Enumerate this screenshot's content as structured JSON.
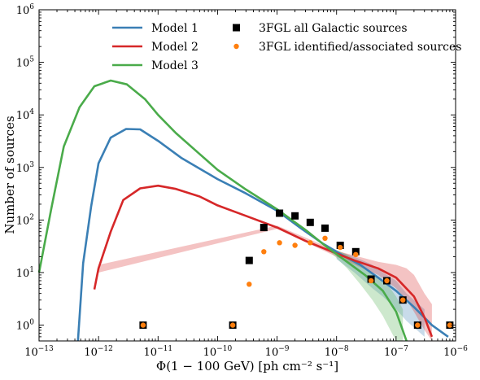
{
  "chart_data": {
    "type": "line",
    "xlabel": "Φ(1 − 100 GeV) [ph cm⁻² s⁻¹]",
    "ylabel": "Number of sources",
    "x_scale": "log",
    "y_scale": "log",
    "xlim": [
      1e-13,
      1e-06
    ],
    "ylim": [
      0.5,
      1000000
    ],
    "x_ticks": [
      {
        "value": 1e-13,
        "base": "10",
        "exp": "−13"
      },
      {
        "value": 1e-12,
        "base": "10",
        "exp": "−12"
      },
      {
        "value": 1e-11,
        "base": "10",
        "exp": "−11"
      },
      {
        "value": 1e-10,
        "base": "10",
        "exp": "−10"
      },
      {
        "value": 1e-09,
        "base": "10",
        "exp": "−9"
      },
      {
        "value": 1e-08,
        "base": "10",
        "exp": "−8"
      },
      {
        "value": 1e-07,
        "base": "10",
        "exp": "−7"
      },
      {
        "value": 1e-06,
        "base": "10",
        "exp": "−6"
      }
    ],
    "y_ticks": [
      {
        "value": 1,
        "base": "10",
        "exp": "0"
      },
      {
        "value": 10,
        "base": "10",
        "exp": "1"
      },
      {
        "value": 100,
        "base": "10",
        "exp": "2"
      },
      {
        "value": 1000,
        "base": "10",
        "exp": "3"
      },
      {
        "value": 10000,
        "base": "10",
        "exp": "4"
      },
      {
        "value": 100000,
        "base": "10",
        "exp": "5"
      },
      {
        "value": 1000000,
        "base": "10",
        "exp": "6"
      }
    ],
    "legend_position": "top",
    "series": [
      {
        "name": "Model 1",
        "kind": "line",
        "color": "#3a7fb5",
        "x": [
          4.5e-13,
          5.5e-13,
          7.5e-13,
          1e-12,
          1.6e-12,
          2.9e-12,
          5e-12,
          1e-11,
          2.5e-11,
          1e-10,
          3e-10,
          1e-09,
          2.5e-09,
          6e-09,
          1.2e-08,
          2.5e-08,
          5e-08,
          1e-07,
          2e-07,
          4e-07,
          7.5e-07
        ],
        "y": [
          0.5,
          15,
          180,
          1200,
          3700,
          5400,
          5300,
          3200,
          1500,
          600,
          320,
          150,
          70,
          35,
          22,
          14,
          8,
          4.5,
          2.2,
          1,
          0.6
        ],
        "band": {
          "x": [
            1e-08,
            2e-08,
            4e-08,
            6e-08,
            1e-07,
            1.5e-07,
            2e-07,
            3e-07
          ],
          "lower": [
            18,
            10,
            5,
            3.5,
            2,
            1.2,
            0.9,
            0.6
          ],
          "upper": [
            26,
            20,
            14,
            10,
            7,
            4,
            3,
            2
          ]
        }
      },
      {
        "name": "Model 2",
        "kind": "line",
        "color": "#d62728",
        "x": [
          8.5e-13,
          1e-12,
          1.6e-12,
          2.6e-12,
          5e-12,
          1e-11,
          2e-11,
          5e-11,
          1e-10,
          3e-10,
          1e-09,
          3e-09,
          1e-08,
          2e-08,
          5e-08,
          1e-07,
          2e-07,
          3e-07,
          4e-07
        ],
        "y": [
          4.8,
          12,
          60,
          240,
          400,
          450,
          390,
          280,
          190,
          120,
          72,
          40,
          23,
          17,
          12,
          8,
          3.5,
          1.4,
          0.6
        ],
        "band": {
          "x": [
            8.5e-13,
            1e-12,
            1e-09,
            1e-08,
            5e-08,
            1e-07,
            1.5e-07,
            2e-07,
            3e-07,
            4e-07
          ],
          "lower": [
            4.5,
            10,
            68,
            20,
            9,
            5,
            3,
            1.8,
            0.8,
            0.5
          ],
          "upper": [
            5.5,
            14,
            78,
            26,
            16,
            14,
            12,
            9,
            4,
            2.5
          ]
        }
      },
      {
        "name": "Model 3",
        "kind": "line",
        "color": "#4aab4a",
        "x": [
          1e-13,
          1.6e-13,
          2.6e-13,
          4.8e-13,
          8.5e-13,
          1.6e-12,
          3e-12,
          6e-12,
          1e-11,
          2e-11,
          5e-11,
          1e-10,
          3e-10,
          1e-09,
          3e-09,
          7e-09,
          1.5e-08,
          3e-08,
          6e-08,
          1e-07,
          1.5e-07
        ],
        "y": [
          10,
          160,
          2500,
          14000,
          35000,
          45000,
          38000,
          20000,
          10000,
          4500,
          1800,
          900,
          380,
          160,
          65,
          30,
          16,
          9,
          4.5,
          1.8,
          0.5
        ],
        "band": {
          "x": [
            7e-09,
            1.5e-08,
            2.5e-08,
            4e-08,
            6e-08,
            8e-08,
            1e-07,
            1.3e-07
          ],
          "lower": [
            28,
            12,
            6,
            3,
            1.5,
            0.8,
            0.5,
            0.5
          ],
          "upper": [
            32,
            22,
            15,
            10,
            7,
            5,
            3.5,
            2
          ]
        }
      },
      {
        "name": "3FGL all Galactic sources",
        "kind": "square",
        "color": "#000000",
        "x": [
          5.6e-12,
          1.8e-10,
          3.4e-10,
          6e-10,
          1.1e-09,
          2e-09,
          3.6e-09,
          6.4e-09,
          1.15e-08,
          2.1e-08,
          3.8e-08,
          7e-08,
          1.3e-07,
          2.3e-07,
          8e-07
        ],
        "y": [
          1,
          1,
          17,
          72,
          135,
          120,
          90,
          70,
          33,
          25,
          7.5,
          7,
          3,
          1,
          1
        ]
      },
      {
        "name": "3FGL identified/associated sources",
        "kind": "circle",
        "color": "#ff7f0e",
        "x": [
          5.6e-12,
          1.8e-10,
          3.4e-10,
          6e-10,
          1.1e-09,
          2e-09,
          3.6e-09,
          6.4e-09,
          1.15e-08,
          2.1e-08,
          3.8e-08,
          7e-08,
          1.3e-07,
          2.3e-07,
          8e-07
        ],
        "y": [
          1,
          1,
          6,
          25,
          37,
          33,
          37,
          45,
          30,
          22,
          7,
          7,
          3,
          1,
          1
        ]
      }
    ]
  }
}
